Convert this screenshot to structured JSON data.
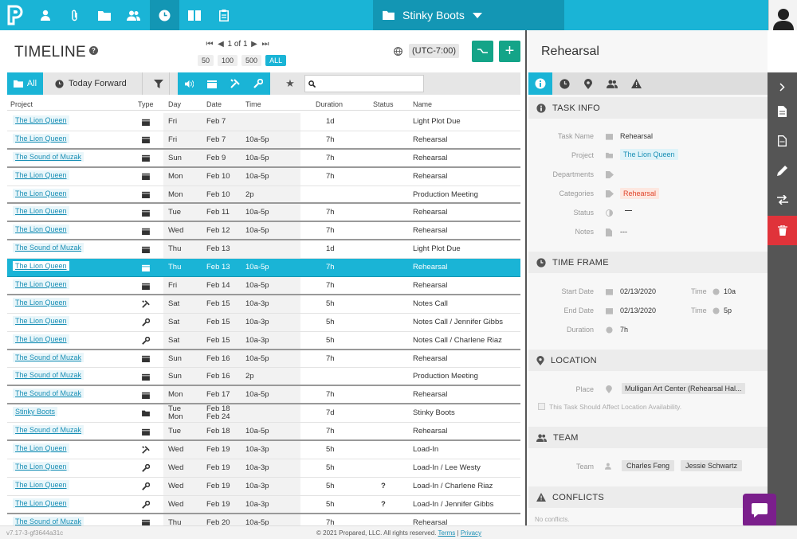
{
  "nav": {
    "project_name": "Stinky Boots",
    "icons": [
      "logo-icon",
      "user-icon",
      "paperclip-icon",
      "folder-icon",
      "people-icon",
      "clock-icon",
      "book-icon",
      "clipboard-icon"
    ]
  },
  "timeline": {
    "title": "TIMELINE",
    "pager_text": "1 of 1",
    "per_page": [
      "50",
      "100",
      "500",
      "ALL"
    ],
    "timezone": "(UTC-7:00)",
    "filters": {
      "all": "All",
      "today_forward": "Today Forward"
    },
    "search_placeholder": "",
    "columns": {
      "project": "Project",
      "type": "Type",
      "day": "Day",
      "date": "Date",
      "time": "Time",
      "duration": "Duration",
      "status": "Status",
      "name": "Name"
    },
    "rows": [
      {
        "project": "The Lion Queen",
        "type": "calendar",
        "day": "Fri",
        "date": "Feb 7",
        "time": "",
        "duration": "1d",
        "status": "",
        "name": "Light Plot Due",
        "sep": false
      },
      {
        "project": "The Lion Queen",
        "type": "calendar",
        "day": "Fri",
        "date": "Feb 7",
        "time": "10a-5p",
        "duration": "7h",
        "status": "",
        "name": "Rehearsal",
        "sep": true
      },
      {
        "project": "The Sound of Muzak",
        "type": "calendar",
        "day": "Sun",
        "date": "Feb 9",
        "time": "10a-5p",
        "duration": "7h",
        "status": "",
        "name": "Rehearsal",
        "sep": true
      },
      {
        "project": "The Lion Queen",
        "type": "calendar",
        "day": "Mon",
        "date": "Feb 10",
        "time": "10a-5p",
        "duration": "7h",
        "status": "",
        "name": "Rehearsal",
        "sep": false
      },
      {
        "project": "The Lion Queen",
        "type": "calendar",
        "day": "Mon",
        "date": "Feb 10",
        "time": "2p",
        "duration": "",
        "status": "",
        "name": "Production Meeting",
        "sep": true
      },
      {
        "project": "The Lion Queen",
        "type": "calendar",
        "day": "Tue",
        "date": "Feb 11",
        "time": "10a-5p",
        "duration": "7h",
        "status": "",
        "name": "Rehearsal",
        "sep": true
      },
      {
        "project": "The Lion Queen",
        "type": "calendar",
        "day": "Wed",
        "date": "Feb 12",
        "time": "10a-5p",
        "duration": "7h",
        "status": "",
        "name": "Rehearsal",
        "sep": true
      },
      {
        "project": "The Sound of Muzak",
        "type": "calendar",
        "day": "Thu",
        "date": "Feb 13",
        "time": "",
        "duration": "1d",
        "status": "",
        "name": "Light Plot Due",
        "sep": false
      },
      {
        "project": "The Lion Queen",
        "type": "calendar",
        "day": "Thu",
        "date": "Feb 13",
        "time": "10a-5p",
        "duration": "7h",
        "status": "",
        "name": "Rehearsal",
        "sep": true,
        "selected": true
      },
      {
        "project": "The Lion Queen",
        "type": "calendar",
        "day": "Fri",
        "date": "Feb 14",
        "time": "10a-5p",
        "duration": "7h",
        "status": "",
        "name": "Rehearsal",
        "sep": true
      },
      {
        "project": "The Lion Queen",
        "type": "tools",
        "day": "Sat",
        "date": "Feb 15",
        "time": "10a-3p",
        "duration": "5h",
        "status": "",
        "name": "Notes Call",
        "sep": false
      },
      {
        "project": "The Lion Queen",
        "type": "wrench",
        "day": "Sat",
        "date": "Feb 15",
        "time": "10a-3p",
        "duration": "5h",
        "status": "",
        "name": "Notes Call / Jennifer Gibbs",
        "sep": false
      },
      {
        "project": "The Lion Queen",
        "type": "wrench",
        "day": "Sat",
        "date": "Feb 15",
        "time": "10a-3p",
        "duration": "5h",
        "status": "",
        "name": "Notes Call / Charlene Riaz",
        "sep": true
      },
      {
        "project": "The Sound of Muzak",
        "type": "calendar",
        "day": "Sun",
        "date": "Feb 16",
        "time": "10a-5p",
        "duration": "7h",
        "status": "",
        "name": "Rehearsal",
        "sep": false
      },
      {
        "project": "The Sound of Muzak",
        "type": "calendar",
        "day": "Sun",
        "date": "Feb 16",
        "time": "2p",
        "duration": "",
        "status": "",
        "name": "Production Meeting",
        "sep": true
      },
      {
        "project": "The Sound of Muzak",
        "type": "calendar",
        "day": "Mon",
        "date": "Feb 17",
        "time": "10a-5p",
        "duration": "7h",
        "status": "",
        "name": "Rehearsal",
        "sep": true
      },
      {
        "project": "Stinky Boots",
        "type": "folder",
        "day": "Tue",
        "day2": "Mon",
        "date": "Feb 18",
        "date2": "Feb 24",
        "time": "",
        "duration": "7d",
        "status": "",
        "name": "Stinky Boots",
        "sep": false
      },
      {
        "project": "The Sound of Muzak",
        "type": "calendar",
        "day": "Tue",
        "date": "Feb 18",
        "time": "10a-5p",
        "duration": "7h",
        "status": "",
        "name": "Rehearsal",
        "sep": true
      },
      {
        "project": "The Lion Queen",
        "type": "tools",
        "day": "Wed",
        "date": "Feb 19",
        "time": "10a-3p",
        "duration": "5h",
        "status": "",
        "name": "Load-In",
        "sep": false
      },
      {
        "project": "The Lion Queen",
        "type": "wrench",
        "day": "Wed",
        "date": "Feb 19",
        "time": "10a-3p",
        "duration": "5h",
        "status": "",
        "name": "Load-In / Lee Westy",
        "sep": false
      },
      {
        "project": "The Lion Queen",
        "type": "wrench",
        "day": "Wed",
        "date": "Feb 19",
        "time": "10a-3p",
        "duration": "5h",
        "status": "?",
        "name": "Load-In / Charlene Riaz",
        "sep": false
      },
      {
        "project": "The Lion Queen",
        "type": "wrench",
        "day": "Wed",
        "date": "Feb 19",
        "time": "10a-3p",
        "duration": "5h",
        "status": "?",
        "name": "Load-In / Jennifer Gibbs",
        "sep": true
      },
      {
        "project": "The Sound of Muzak",
        "type": "calendar",
        "day": "Thu",
        "date": "Feb 20",
        "time": "10a-5p",
        "duration": "7h",
        "status": "",
        "name": "Rehearsal",
        "sep": false
      }
    ]
  },
  "detail": {
    "title": "Rehearsal",
    "task_info": {
      "heading": "TASK INFO",
      "task_name_label": "Task Name",
      "task_name": "Rehearsal",
      "project_label": "Project",
      "project": "The Lion Queen",
      "departments_label": "Departments",
      "categories_label": "Categories",
      "category": "Rehearsal",
      "status_label": "Status",
      "status": "—",
      "notes_label": "Notes",
      "notes": "---"
    },
    "time_frame": {
      "heading": "TIME FRAME",
      "start_label": "Start Date",
      "start_date": "02/13/2020",
      "start_time_label": "Time",
      "start_time": "10a",
      "end_label": "End Date",
      "end_date": "02/13/2020",
      "end_time_label": "Time",
      "end_time": "5p",
      "duration_label": "Duration",
      "duration": "7h"
    },
    "location": {
      "heading": "LOCATION",
      "place_label": "Place",
      "place": "Mulligan Art Center (Rehearsal Hal...",
      "availability_label": "This Task Should Affect Location Availability."
    },
    "team": {
      "heading": "TEAM",
      "team_label": "Team",
      "members": [
        "Charles Feng",
        "Jessie Schwartz"
      ]
    },
    "conflicts": {
      "heading": "CONFLICTS",
      "text": "No conflicts."
    }
  },
  "footer": {
    "version": "v7.17-3-gf3644a31c",
    "copyright": "© 2021 Propared, LLC. All rights reserved.",
    "terms": "Terms",
    "divider": "|",
    "privacy": "Privacy"
  },
  "colors": {
    "accent": "#1ab4d6",
    "accent_dark": "#1396b4",
    "green": "#14a488",
    "delete": "#e0333a",
    "chat": "#7b1f8c"
  }
}
